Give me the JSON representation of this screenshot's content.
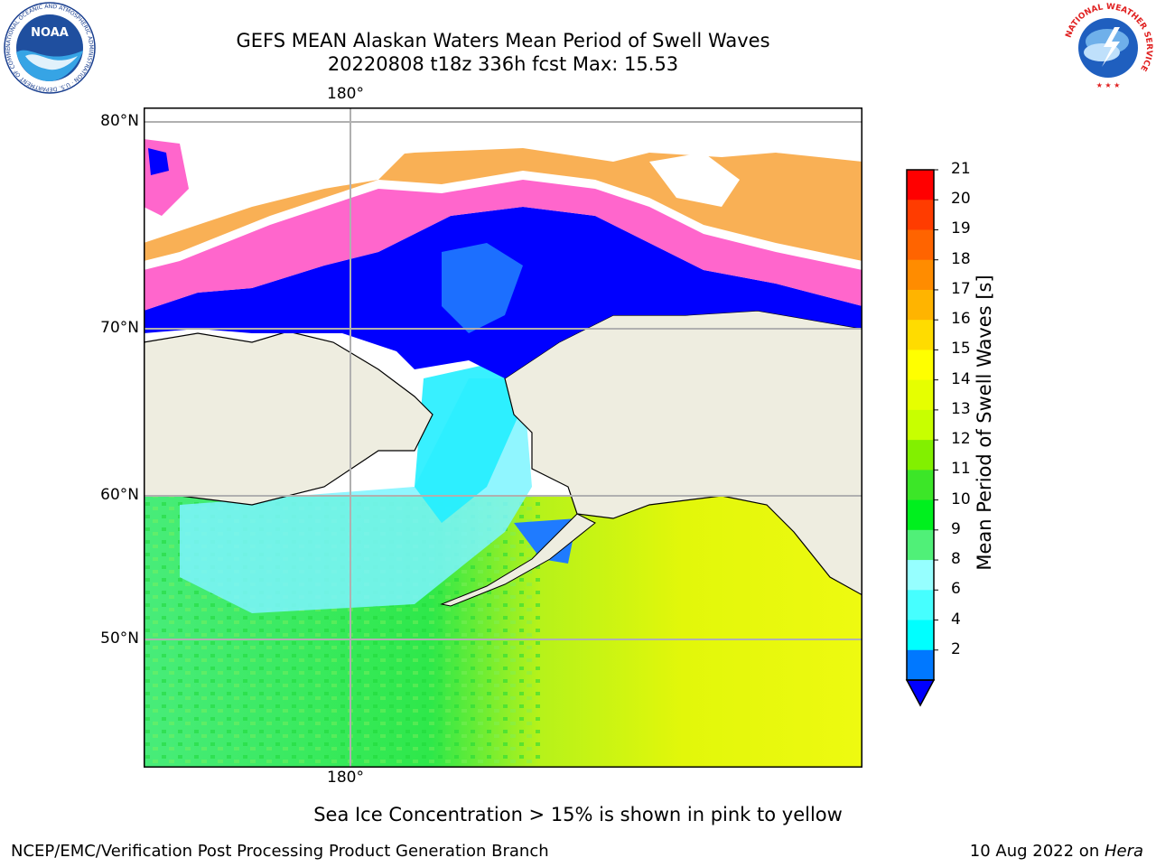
{
  "header": {
    "title_line1": "GEFS MEAN Alaskan Waters Mean Period of Swell Waves",
    "title_line2": "20220808 t18z 336h fcst   Max: 15.53",
    "left_logo": {
      "name": "noaa-logo",
      "text": "NOAA",
      "ring_text": "NATIONAL OCEANIC AND ATMOSPHERIC ADMINISTRATION · U.S. DEPARTMENT OF COMMERCE"
    },
    "right_logo": {
      "name": "nws-logo",
      "ring_text": "NATIONAL WEATHER SERVICE"
    }
  },
  "map": {
    "lon_label_top": "180°",
    "lon_label_bottom": "180°",
    "lat_labels": [
      "80°N",
      "70°N",
      "60°N",
      "50°N"
    ],
    "colors": {
      "land": "#eeede0",
      "sea_ice": "#f9b055",
      "ice_edge": "#ff66cc",
      "no_data": "#ffffff"
    }
  },
  "colorbar": {
    "label": "Mean Period of Swell Waves [s]",
    "ticks": [
      "21",
      "20",
      "19",
      "18",
      "17",
      "16",
      "15",
      "14",
      "13",
      "12",
      "11",
      "10",
      "9",
      "8",
      "6",
      "4",
      "2"
    ],
    "colors": [
      "#ff0000",
      "#ff3c00",
      "#ff6400",
      "#ff8c00",
      "#ffb400",
      "#ffdc00",
      "#ffff00",
      "#e6ff00",
      "#c8ff00",
      "#82f000",
      "#3ce628",
      "#00f01e",
      "#50f078",
      "#96ffff",
      "#46ffff",
      "#00ffff",
      "#0078ff"
    ],
    "under_color": "#0000ff"
  },
  "caption": "Sea Ice Concentration > 15% is shown in pink to yellow",
  "footer": {
    "left": "NCEP/EMC/Verification Post Processing Product Generation Branch",
    "right_prefix": "10 Aug 2022 on ",
    "right_machine": "Hera"
  }
}
